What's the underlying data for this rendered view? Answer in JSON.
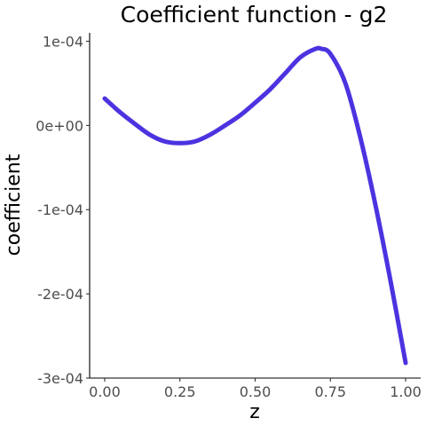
{
  "chart_data": {
    "type": "line",
    "title": "Coefficient function - g2",
    "xlabel": "z",
    "ylabel": "coefficient",
    "xlim": [
      -0.05,
      1.05
    ],
    "ylim": [
      -0.0003,
      0.00011
    ],
    "x_ticks": [
      0.0,
      0.25,
      0.5,
      0.75,
      1.0
    ],
    "x_tick_labels": [
      "0.00",
      "0.25",
      "0.50",
      "0.75",
      "1.00"
    ],
    "y_ticks": [
      0.0001,
      0.0,
      -0.0001,
      -0.0002,
      -0.0003
    ],
    "y_tick_labels": [
      "1e-04",
      "0e+00",
      "-1e-04",
      "-2e-04",
      "-3e-04"
    ],
    "grid": false,
    "series": [
      {
        "color": "#4B33E0",
        "x": [
          0.0,
          0.05,
          0.1,
          0.15,
          0.2,
          0.25,
          0.3,
          0.35,
          0.4,
          0.45,
          0.5,
          0.55,
          0.6,
          0.65,
          0.7,
          0.72,
          0.75,
          0.8,
          0.85,
          0.9,
          0.95,
          1.0
        ],
        "y": [
          3.2e-05,
          1.6e-05,
          2e-06,
          -1.1e-05,
          -1.9e-05,
          -2.1e-05,
          -1.9e-05,
          -1.1e-05,
          0.0,
          1.2e-05,
          2.7e-05,
          4.3e-05,
          6.2e-05,
          8.1e-05,
          9.1e-05,
          9.1e-05,
          8.5e-05,
          5e-05,
          -1.5e-05,
          -9.5e-05,
          -0.000185,
          -0.000282
        ]
      }
    ]
  }
}
